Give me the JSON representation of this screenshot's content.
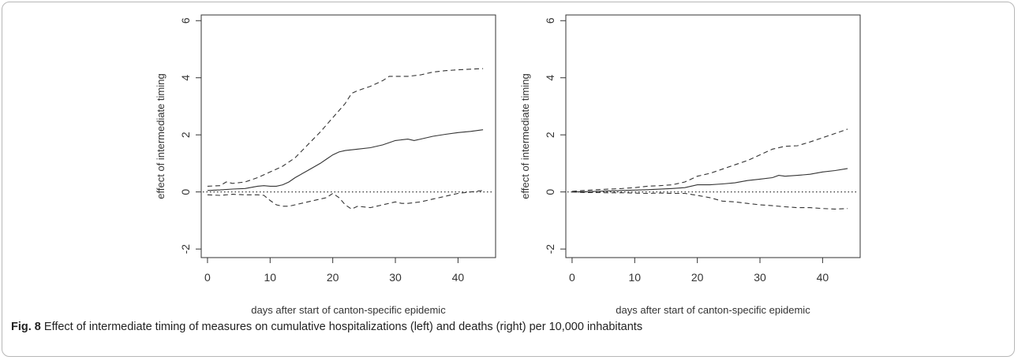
{
  "figure": {
    "caption_label": "Fig. 8",
    "caption_text": "Effect of intermediate timing of measures on cumulative hospitalizations (left) and deaths (right) per 10,000 inhabitants"
  },
  "chart_data": [
    {
      "type": "line",
      "panel": "left",
      "xlabel": "days after start of canton-specific epidemic",
      "ylabel": "effect of intermediate timing",
      "xlim": [
        -1,
        46
      ],
      "ylim": [
        -2.3,
        6.2
      ],
      "xticks": [
        0,
        10,
        20,
        30,
        40
      ],
      "yticks": [
        -2,
        0,
        2,
        4,
        6
      ],
      "reference_line": 0,
      "series": [
        {
          "style": "solid",
          "x": [
            0,
            2,
            4,
            6,
            8,
            9,
            10,
            11,
            12,
            13,
            14,
            16,
            18,
            19,
            20,
            21,
            22,
            24,
            26,
            28,
            30,
            32,
            33,
            34,
            36,
            38,
            40,
            42,
            44
          ],
          "y": [
            0.05,
            0.07,
            0.1,
            0.12,
            0.2,
            0.22,
            0.2,
            0.2,
            0.25,
            0.35,
            0.5,
            0.75,
            1.0,
            1.15,
            1.3,
            1.4,
            1.45,
            1.5,
            1.55,
            1.65,
            1.8,
            1.85,
            1.8,
            1.85,
            1.95,
            2.02,
            2.08,
            2.12,
            2.18
          ]
        },
        {
          "style": "dashed",
          "x": [
            0,
            2,
            3,
            4,
            6,
            8,
            10,
            11,
            12,
            14,
            16,
            18,
            20,
            22,
            23,
            24,
            26,
            28,
            29,
            30,
            32,
            34,
            36,
            38,
            40,
            42,
            44
          ],
          "y": [
            0.2,
            0.22,
            0.35,
            0.3,
            0.35,
            0.5,
            0.7,
            0.8,
            0.9,
            1.2,
            1.65,
            2.1,
            2.6,
            3.1,
            3.45,
            3.55,
            3.7,
            3.9,
            4.05,
            4.05,
            4.05,
            4.1,
            4.2,
            4.25,
            4.28,
            4.3,
            4.32
          ]
        },
        {
          "style": "dashed",
          "x": [
            0,
            2,
            4,
            6,
            8,
            9,
            10,
            11,
            12,
            13,
            14,
            16,
            18,
            19,
            20,
            21,
            22,
            23,
            24,
            26,
            28,
            30,
            31,
            32,
            34,
            36,
            38,
            40,
            42,
            44
          ],
          "y": [
            -0.1,
            -0.12,
            -0.08,
            -0.1,
            -0.1,
            -0.12,
            -0.3,
            -0.45,
            -0.5,
            -0.5,
            -0.45,
            -0.35,
            -0.25,
            -0.2,
            -0.05,
            -0.2,
            -0.45,
            -0.6,
            -0.5,
            -0.55,
            -0.45,
            -0.35,
            -0.4,
            -0.4,
            -0.35,
            -0.25,
            -0.15,
            -0.05,
            0.0,
            0.05
          ]
        }
      ]
    },
    {
      "type": "line",
      "panel": "right",
      "xlabel": "days after start of canton-specific epidemic",
      "ylabel": "effect of intermediate timing",
      "xlim": [
        -1,
        46
      ],
      "ylim": [
        -2.3,
        6.2
      ],
      "xticks": [
        0,
        10,
        20,
        30,
        40
      ],
      "yticks": [
        -2,
        0,
        2,
        4,
        6
      ],
      "reference_line": 0,
      "series": [
        {
          "style": "solid",
          "x": [
            0,
            4,
            8,
            12,
            16,
            18,
            20,
            22,
            24,
            26,
            28,
            30,
            32,
            33,
            34,
            36,
            38,
            40,
            42,
            44
          ],
          "y": [
            0.0,
            0.02,
            0.05,
            0.08,
            0.12,
            0.15,
            0.25,
            0.25,
            0.28,
            0.32,
            0.4,
            0.45,
            0.5,
            0.58,
            0.55,
            0.58,
            0.62,
            0.7,
            0.75,
            0.82
          ]
        },
        {
          "style": "dashed",
          "x": [
            0,
            2,
            4,
            6,
            8,
            10,
            12,
            14,
            16,
            18,
            20,
            22,
            24,
            26,
            28,
            30,
            32,
            34,
            36,
            38,
            40,
            42,
            44
          ],
          "y": [
            0.02,
            0.05,
            0.08,
            0.1,
            0.12,
            0.15,
            0.2,
            0.22,
            0.25,
            0.35,
            0.55,
            0.65,
            0.8,
            0.95,
            1.1,
            1.3,
            1.5,
            1.6,
            1.62,
            1.75,
            1.9,
            2.05,
            2.2
          ]
        },
        {
          "style": "dashed",
          "x": [
            0,
            2,
            4,
            6,
            8,
            10,
            12,
            14,
            16,
            18,
            20,
            22,
            24,
            26,
            28,
            30,
            32,
            34,
            36,
            38,
            40,
            42,
            44
          ],
          "y": [
            0.0,
            -0.02,
            -0.02,
            -0.03,
            -0.03,
            -0.04,
            -0.05,
            -0.04,
            -0.05,
            -0.05,
            -0.12,
            -0.2,
            -0.32,
            -0.35,
            -0.4,
            -0.45,
            -0.48,
            -0.52,
            -0.55,
            -0.55,
            -0.58,
            -0.6,
            -0.58
          ]
        }
      ]
    }
  ]
}
